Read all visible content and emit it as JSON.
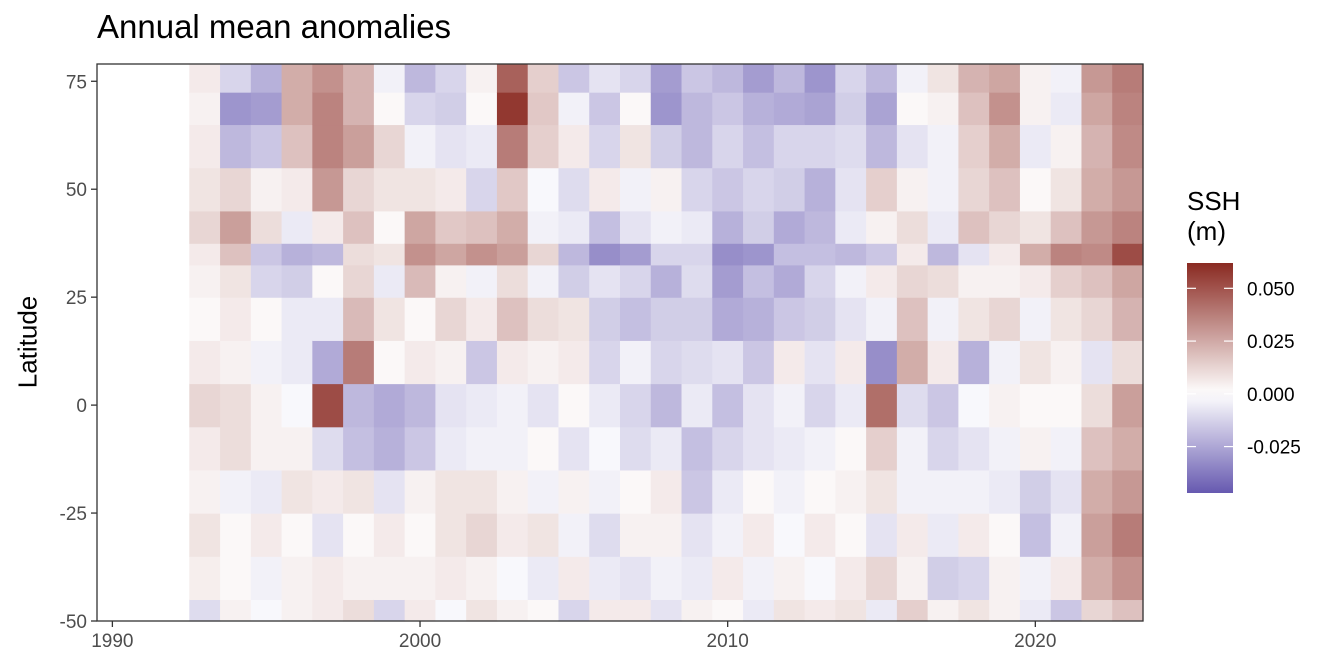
{
  "chart_data": {
    "type": "heatmap",
    "title": "Annual mean anomalies",
    "xlabel": "",
    "ylabel": "Latitude",
    "x_ticks": [
      1990,
      2000,
      2010,
      2020
    ],
    "y_ticks": [
      75,
      50,
      25,
      0,
      -25,
      -50
    ],
    "xlim": [
      1989.5,
      2023.5
    ],
    "ylim": [
      -50,
      79
    ],
    "years": [
      1990,
      1991,
      1992,
      1993,
      1994,
      1995,
      1996,
      1997,
      1998,
      1999,
      2000,
      2001,
      2002,
      2003,
      2004,
      2005,
      2006,
      2007,
      2008,
      2009,
      2010,
      2011,
      2012,
      2013,
      2014,
      2015,
      2016,
      2017,
      2018,
      2019,
      2020,
      2021,
      2022,
      2023
    ],
    "latitude_bands": [
      -50,
      -40,
      -30,
      -20,
      -10,
      0,
      10,
      20,
      30,
      35,
      40,
      50,
      60,
      70,
      75
    ],
    "values_m": [
      [
        0,
        0,
        0,
        0,
        0,
        0,
        0,
        0,
        0,
        0,
        0,
        0,
        0,
        0,
        0
      ],
      [
        0,
        0,
        0,
        0,
        0,
        0,
        0,
        0,
        0,
        0,
        0,
        0,
        0,
        0,
        0
      ],
      [
        0,
        0,
        0,
        0,
        0,
        0,
        0,
        0,
        0,
        0,
        0,
        0,
        0,
        0,
        0
      ],
      [
        -0.01,
        0.005,
        0.008,
        0.004,
        0.006,
        0.012,
        0.006,
        0.002,
        0.004,
        0.006,
        0.012,
        0.008,
        0.006,
        0.004,
        0.006
      ],
      [
        0.004,
        0.002,
        0.002,
        -0.004,
        0.01,
        0.01,
        0.004,
        0.006,
        0.008,
        0.018,
        0.028,
        0.012,
        -0.02,
        -0.03,
        -0.012
      ],
      [
        -0.002,
        -0.004,
        0.006,
        -0.006,
        0.004,
        0.004,
        -0.004,
        0.002,
        -0.012,
        -0.016,
        0.01,
        0.004,
        -0.016,
        -0.028,
        -0.022
      ],
      [
        0.004,
        0.004,
        0.002,
        0.008,
        0.004,
        -0.002,
        -0.006,
        -0.006,
        -0.014,
        -0.022,
        -0.006,
        0.006,
        0.018,
        0.024,
        0.024
      ],
      [
        0.006,
        0.006,
        -0.008,
        0.006,
        -0.01,
        0.052,
        -0.024,
        -0.006,
        0.002,
        -0.02,
        0.006,
        0.03,
        0.036,
        0.036,
        0.032
      ],
      [
        0.01,
        0.004,
        0.002,
        0.008,
        -0.018,
        -0.02,
        0.038,
        0.02,
        0.012,
        0.01,
        0.018,
        0.012,
        0.028,
        0.022,
        0.022
      ],
      [
        -0.012,
        0.004,
        0.006,
        -0.008,
        -0.022,
        -0.024,
        0.002,
        0.008,
        -0.006,
        0.008,
        0.002,
        0.008,
        0.012,
        0.002,
        -0.004
      ],
      [
        0.006,
        0.004,
        0.002,
        0.004,
        -0.016,
        -0.02,
        0.006,
        0.002,
        0.02,
        0.032,
        0.026,
        0.008,
        -0.004,
        -0.012,
        -0.02
      ],
      [
        -0.002,
        0.006,
        0.008,
        0.008,
        -0.006,
        -0.008,
        0.004,
        0.012,
        0.004,
        0.026,
        0.016,
        0.006,
        -0.008,
        -0.014,
        -0.012
      ],
      [
        0.008,
        0.004,
        0.012,
        0.008,
        -0.004,
        -0.006,
        -0.016,
        0.006,
        -0.004,
        0.032,
        0.018,
        -0.012,
        -0.006,
        0.002,
        0.004
      ],
      [
        0.004,
        -0.002,
        0.006,
        0.004,
        -0.004,
        -0.004,
        0.006,
        0.018,
        0.01,
        0.028,
        0.024,
        0.016,
        0.038,
        0.058,
        0.046
      ],
      [
        0.002,
        -0.006,
        0.008,
        -0.004,
        0.002,
        -0.008,
        0.004,
        0.01,
        -0.004,
        0.012,
        -0.004,
        -0.002,
        0.014,
        0.016,
        0.014
      ],
      [
        -0.012,
        0.006,
        -0.004,
        0.004,
        -0.008,
        0.002,
        0.006,
        0.008,
        -0.014,
        -0.02,
        -0.006,
        -0.01,
        0.006,
        -0.004,
        -0.016
      ],
      [
        0.006,
        -0.006,
        -0.01,
        -0.004,
        -0.002,
        -0.006,
        -0.012,
        -0.014,
        -0.008,
        -0.032,
        -0.018,
        0.006,
        -0.012,
        -0.016,
        -0.008
      ],
      [
        0.006,
        -0.008,
        0.004,
        0.002,
        -0.01,
        -0.012,
        -0.004,
        -0.018,
        -0.012,
        -0.028,
        -0.008,
        -0.004,
        0.008,
        0.002,
        -0.012
      ],
      [
        -0.008,
        -0.004,
        0.004,
        0.006,
        -0.006,
        -0.02,
        -0.012,
        -0.014,
        -0.022,
        -0.012,
        -0.004,
        0.004,
        -0.014,
        -0.03,
        -0.028
      ],
      [
        0.004,
        -0.006,
        -0.008,
        -0.016,
        -0.018,
        -0.006,
        -0.01,
        -0.014,
        -0.01,
        -0.012,
        -0.006,
        -0.012,
        -0.02,
        -0.02,
        -0.016
      ],
      [
        0.002,
        0.006,
        -0.004,
        -0.006,
        -0.012,
        -0.018,
        -0.008,
        -0.024,
        -0.028,
        -0.032,
        -0.022,
        -0.016,
        -0.012,
        -0.016,
        -0.02
      ],
      [
        -0.006,
        -0.004,
        0.006,
        0.002,
        -0.008,
        -0.008,
        -0.016,
        -0.022,
        -0.018,
        -0.03,
        -0.014,
        -0.012,
        -0.018,
        -0.022,
        -0.028
      ],
      [
        0.008,
        0.004,
        -0.002,
        -0.004,
        -0.006,
        -0.004,
        0.006,
        -0.016,
        -0.024,
        -0.018,
        -0.024,
        -0.014,
        -0.012,
        -0.024,
        -0.02
      ],
      [
        0.006,
        -0.002,
        0.006,
        0.002,
        -0.004,
        -0.012,
        -0.008,
        -0.014,
        -0.012,
        -0.018,
        -0.02,
        -0.022,
        -0.012,
        -0.026,
        -0.03
      ],
      [
        0.008,
        0.006,
        0.002,
        0.004,
        0.002,
        -0.006,
        0.006,
        -0.008,
        -0.004,
        -0.02,
        -0.006,
        -0.008,
        -0.01,
        -0.014,
        -0.012
      ],
      [
        -0.006,
        0.012,
        -0.008,
        0.008,
        0.014,
        0.042,
        -0.032,
        -0.004,
        0.006,
        -0.016,
        0.004,
        0.014,
        -0.02,
        -0.026,
        -0.02
      ],
      [
        0.014,
        0.004,
        0.006,
        -0.004,
        -0.004,
        -0.01,
        0.024,
        0.018,
        0.012,
        0.006,
        0.01,
        0.004,
        -0.008,
        0.002,
        -0.004
      ],
      [
        0.004,
        -0.014,
        -0.006,
        -0.004,
        -0.012,
        -0.016,
        0.006,
        -0.004,
        0.01,
        -0.02,
        -0.006,
        -0.004,
        -0.004,
        0.004,
        0.008
      ],
      [
        0.008,
        -0.012,
        0.006,
        -0.004,
        -0.008,
        -0.002,
        -0.022,
        0.008,
        0.004,
        -0.008,
        0.018,
        0.012,
        0.014,
        0.018,
        0.022
      ],
      [
        0.004,
        0.004,
        0.002,
        -0.006,
        -0.004,
        0.004,
        -0.004,
        0.012,
        0.004,
        0.006,
        0.012,
        0.018,
        0.024,
        0.032,
        0.026
      ],
      [
        -0.006,
        -0.004,
        -0.018,
        -0.014,
        0.004,
        0.002,
        0.008,
        -0.004,
        0.006,
        0.024,
        0.008,
        0.002,
        -0.006,
        0.004,
        0.004
      ],
      [
        -0.016,
        0.006,
        -0.004,
        -0.008,
        -0.004,
        0.002,
        0.004,
        0.008,
        0.014,
        0.036,
        0.018,
        0.008,
        0.004,
        -0.006,
        -0.004
      ],
      [
        0.012,
        0.024,
        0.028,
        0.024,
        0.018,
        0.01,
        -0.008,
        0.012,
        0.018,
        0.034,
        0.03,
        0.024,
        0.022,
        0.026,
        0.03
      ],
      [
        0.018,
        0.032,
        0.038,
        0.03,
        0.024,
        0.028,
        0.01,
        0.022,
        0.026,
        0.052,
        0.036,
        0.03,
        0.034,
        0.036,
        0.038
      ]
    ],
    "legend": {
      "title_line1": "SSH",
      "title_line2": "(m)",
      "labels": [
        "0.050",
        "0.025",
        "0.000",
        "-0.025"
      ],
      "label_values": [
        0.05,
        0.025,
        0.0,
        -0.025
      ],
      "range": [
        -0.047,
        0.062
      ],
      "colors": {
        "low": "#6659b0",
        "mid": "#ffffff",
        "high": "#8a2a22"
      }
    },
    "grid": false,
    "legend_placement": "right"
  }
}
